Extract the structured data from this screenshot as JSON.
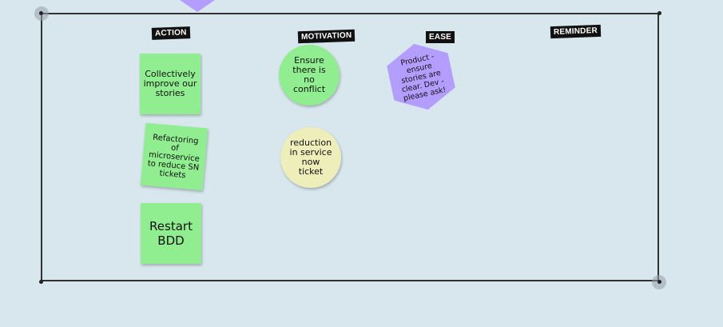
{
  "board": {
    "labels": {
      "action": "ACTION",
      "motivation": "MOTIVATION",
      "ease": "EASE",
      "reminder": "REMINDER"
    },
    "stickies": {
      "s1": "Collectively improve our stories",
      "s2": "Refactoring of microservice to reduce SN tickets",
      "s3": "Restart BDD"
    },
    "circles": {
      "c1": "Ensure there is no conflict",
      "c2": "reduction in service now ticket"
    },
    "hexagon": {
      "h1": "Product - ensure stories are clear. Dev - please ask!"
    }
  },
  "colors": {
    "background": "#d8e6ee",
    "sticky_green": "#90ee90",
    "circle_green": "#90ee90",
    "circle_yellow": "#eeeebb",
    "hexagon_purple": "#b39dff",
    "label_bg": "#111111"
  }
}
